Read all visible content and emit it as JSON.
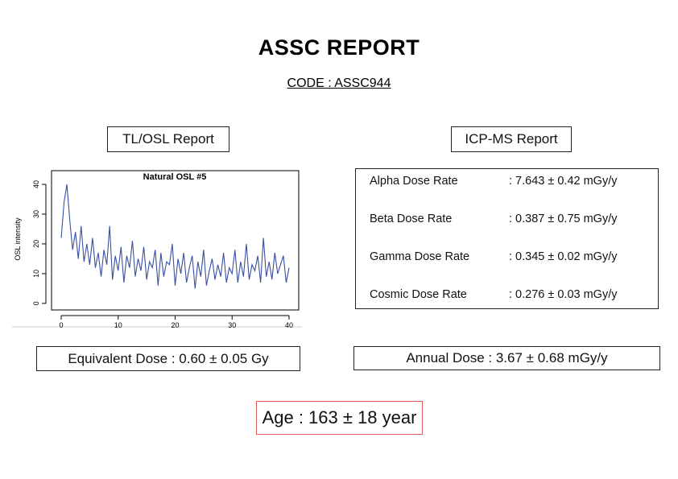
{
  "header": {
    "title": "ASSC REPORT",
    "code": "CODE : ASSC944"
  },
  "tlosl": {
    "title": "TL/OSL Report",
    "chart_data": {
      "type": "line",
      "title": "Natural OSL #5",
      "y_label": "OSL intensity",
      "color": "#3a4fa3",
      "x": [
        0,
        0.5,
        1,
        1.5,
        2,
        2.5,
        3,
        3.5,
        4,
        4.5,
        5,
        5.5,
        6,
        6.5,
        7,
        7.5,
        8,
        8.5,
        9,
        9.5,
        10,
        10.5,
        11,
        11.5,
        12,
        12.5,
        13,
        13.5,
        14,
        14.5,
        15,
        15.5,
        16,
        16.5,
        17,
        17.5,
        18,
        18.5,
        19,
        19.5,
        20,
        20.5,
        21,
        21.5,
        22,
        22.5,
        23,
        23.5,
        24,
        24.5,
        25,
        25.5,
        26,
        26.5,
        27,
        27.5,
        28,
        28.5,
        29,
        29.5,
        30,
        30.5,
        31,
        31.5,
        32,
        32.5,
        33,
        33.5,
        34,
        34.5,
        35,
        35.5,
        36,
        36.5,
        37,
        37.5,
        38,
        38.5,
        39,
        39.5,
        40
      ],
      "values": [
        22,
        34,
        40,
        28,
        18,
        24,
        15,
        26,
        14,
        20,
        13,
        22,
        12,
        17,
        9,
        18,
        13,
        26,
        8,
        16,
        11,
        19,
        7,
        16,
        12,
        21,
        9,
        15,
        11,
        19,
        8,
        14,
        12,
        18,
        6,
        17,
        9,
        14,
        13,
        20,
        6,
        15,
        10,
        17,
        7,
        12,
        16,
        5,
        14,
        9,
        18,
        6,
        11,
        15,
        8,
        13,
        9,
        17,
        7,
        12,
        10,
        18,
        7,
        14,
        9,
        20,
        8,
        13,
        11,
        16,
        7,
        22,
        9,
        14,
        8,
        17,
        10,
        13,
        16,
        7,
        12
      ],
      "xlim": [
        -1.7,
        41.7
      ],
      "ylim": [
        -2.2,
        44.6
      ],
      "xticks": [
        0,
        10,
        20,
        30,
        40
      ],
      "yticks": [
        0,
        10,
        20,
        30,
        40
      ]
    },
    "equivalent_dose": "Equivalent Dose : 0.60 ± 0.05 Gy"
  },
  "icpms": {
    "title": "ICP-MS Report",
    "rows": [
      [
        "Alpha Dose Rate",
        ": 7.643 ± 0.42 mGy/y"
      ],
      [
        "Beta Dose Rate",
        ": 0.387 ± 0.75 mGy/y"
      ],
      [
        "Gamma Dose Rate",
        ": 0.345 ± 0.02 mGy/y"
      ],
      [
        "Cosmic Dose Rate",
        ": 0.276 ± 0.03 mGy/y"
      ]
    ],
    "annual_dose": "Annual Dose : 3.67 ± 0.68 mGy/y"
  },
  "age": "Age : 163 ± 18 year"
}
